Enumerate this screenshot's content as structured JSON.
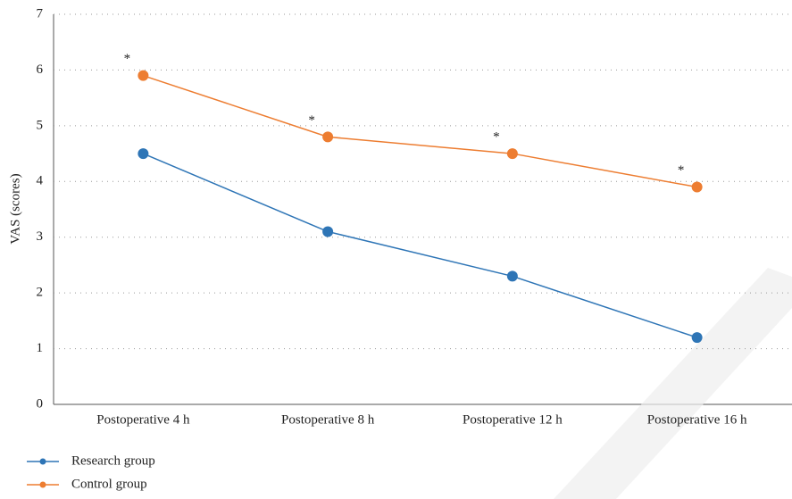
{
  "chart_data": {
    "type": "line",
    "y_label": "VAS (scores)",
    "categories": [
      "Postoperative 4 h",
      "Postoperative 8 h",
      "Postoperative 12 h",
      "Postoperative 16 h"
    ],
    "series": [
      {
        "name": "Research group",
        "color": "#2e75b6",
        "values": [
          4.5,
          3.1,
          2.3,
          1.2
        ]
      },
      {
        "name": "Control group",
        "color": "#ed7d31",
        "values": [
          5.9,
          4.8,
          4.5,
          3.9
        ]
      }
    ],
    "annotations": [
      "*",
      "*",
      "*",
      "*"
    ],
    "ylim": [
      0,
      7
    ],
    "yticks": [
      0,
      1,
      2,
      3,
      4,
      5,
      6,
      7
    ],
    "grid": true
  }
}
